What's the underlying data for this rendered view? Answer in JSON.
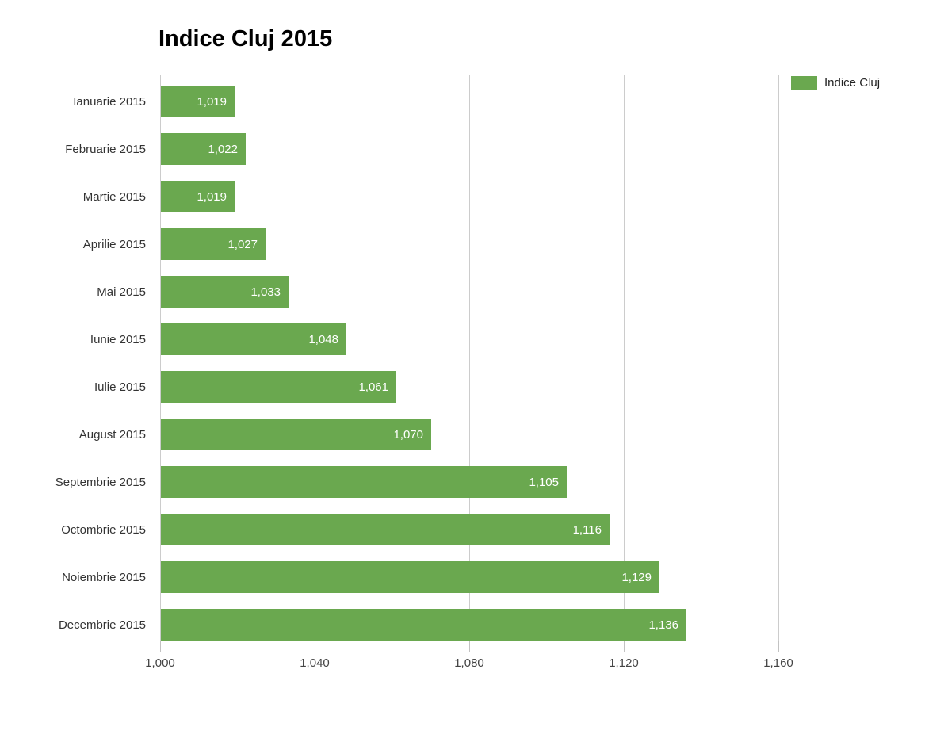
{
  "title": "Indice Cluj 2015",
  "legend": {
    "label": "Indice Cluj",
    "swatch_color": "#6aa84f"
  },
  "chart_data": {
    "type": "bar",
    "orientation": "horizontal",
    "title": "Indice Cluj 2015",
    "xlabel": "",
    "ylabel": "",
    "categories": [
      "Ianuarie 2015",
      "Februarie 2015",
      "Martie 2015",
      "Aprilie 2015",
      "Mai 2015",
      "Iunie 2015",
      "Iulie 2015",
      "August 2015",
      "Septembrie 2015",
      "Octombrie 2015",
      "Noiembrie 2015",
      "Decembrie 2015"
    ],
    "series": [
      {
        "name": "Indice Cluj",
        "color": "#6aa84f",
        "values": [
          1019,
          1022,
          1019,
          1027,
          1033,
          1048,
          1061,
          1070,
          1105,
          1116,
          1129,
          1136
        ]
      }
    ],
    "value_labels": [
      "1,019",
      "1,022",
      "1,019",
      "1,027",
      "1,033",
      "1,048",
      "1,061",
      "1,070",
      "1,105",
      "1,116",
      "1,129",
      "1,136"
    ],
    "x_tick_labels": [
      "1,000",
      "1,040",
      "1,080",
      "1,120",
      "1,160"
    ],
    "x_tick_values": [
      1000,
      1040,
      1080,
      1120,
      1160
    ],
    "xlim": [
      1000,
      1160
    ],
    "grid": true,
    "gridline_color": "#cccccc",
    "value_label_color": "#ffffff",
    "axis_label_color": "#444444",
    "category_label_color": "#333333",
    "legend_position": "top-right"
  }
}
